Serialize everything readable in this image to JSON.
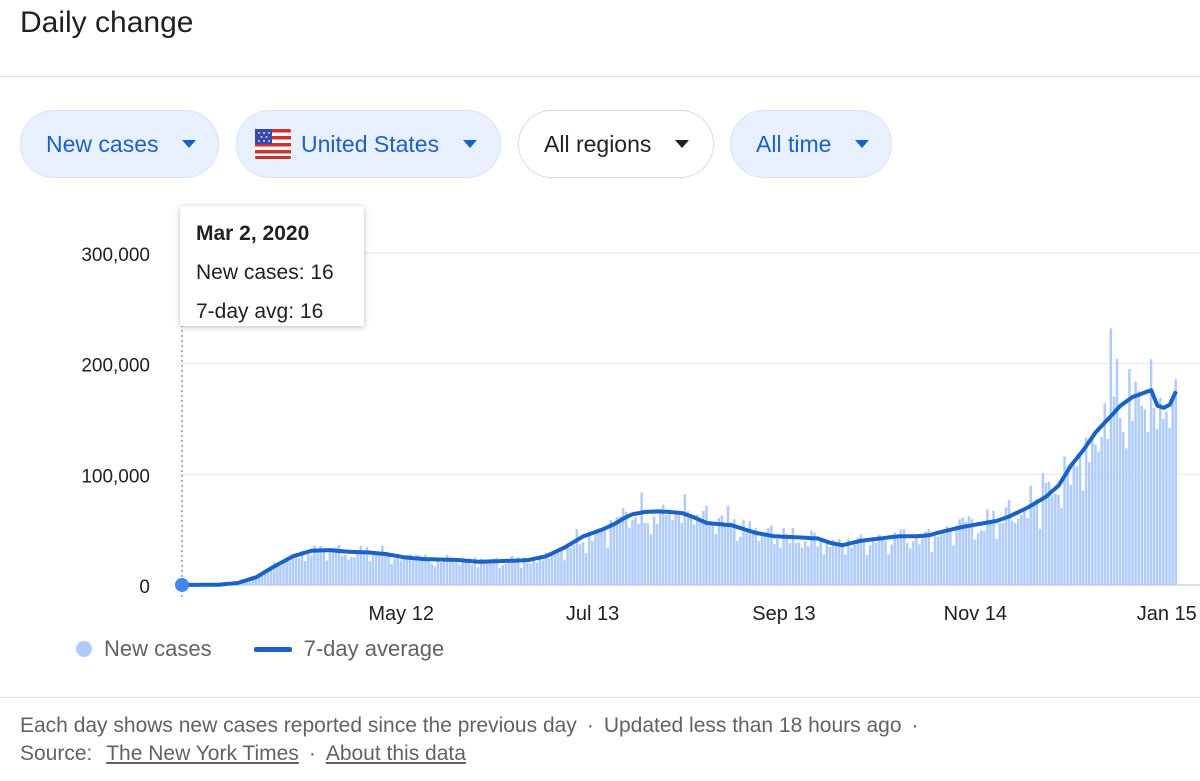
{
  "header": {
    "title": "Daily change"
  },
  "filters": [
    {
      "label": "New cases",
      "style": "blue",
      "name": "metric-filter-chip"
    },
    {
      "label": "United States",
      "style": "blue",
      "flag": true,
      "name": "country-filter-chip"
    },
    {
      "label": "All regions",
      "style": "white",
      "name": "region-filter-chip"
    },
    {
      "label": "All time",
      "style": "blue",
      "name": "time-filter-chip"
    }
  ],
  "tooltip": {
    "date": "Mar 2, 2020",
    "new_cases": "New cases: 16",
    "avg": "7-day avg: 16"
  },
  "legend": {
    "bars": "New cases",
    "line": "7-day average"
  },
  "footer": {
    "line1": "Each day shows new cases reported since the previous day",
    "updated": "Updated less than 18 hours ago",
    "source_label": "Source:",
    "source_link": "The New York Times",
    "about_link": "About this data"
  },
  "colors": {
    "accent": "#1a62c9",
    "bars": "#aecbfa",
    "chip_bg": "#e8f0fe"
  },
  "chart_data": {
    "type": "bar",
    "series": [
      {
        "name": "New cases",
        "type": "bar"
      },
      {
        "name": "7-day average",
        "type": "line"
      }
    ],
    "x_ticks": [
      "May 12",
      "Jul 13",
      "Sep 13",
      "Nov 14",
      "Jan 15"
    ],
    "y_ticks": [
      "0",
      "100,000",
      "200,000",
      "300,000"
    ],
    "ylim": [
      0,
      300000
    ],
    "x_range_days": [
      0,
      322
    ],
    "tick_days": [
      71,
      133,
      195,
      257,
      319
    ],
    "avg_points": [
      [
        0,
        16
      ],
      [
        12,
        300
      ],
      [
        18,
        1800
      ],
      [
        24,
        7000
      ],
      [
        30,
        17000
      ],
      [
        36,
        26000
      ],
      [
        42,
        31000
      ],
      [
        48,
        31500
      ],
      [
        54,
        30000
      ],
      [
        60,
        29500
      ],
      [
        66,
        28000
      ],
      [
        72,
        25000
      ],
      [
        78,
        23500
      ],
      [
        84,
        23000
      ],
      [
        90,
        22500
      ],
      [
        96,
        21000
      ],
      [
        102,
        21500
      ],
      [
        108,
        22000
      ],
      [
        112,
        22500
      ],
      [
        118,
        26000
      ],
      [
        124,
        34000
      ],
      [
        130,
        44000
      ],
      [
        136,
        50000
      ],
      [
        140,
        55000
      ],
      [
        143,
        60000
      ],
      [
        146,
        64000
      ],
      [
        150,
        66000
      ],
      [
        154,
        66500
      ],
      [
        158,
        66000
      ],
      [
        162,
        65000
      ],
      [
        166,
        61000
      ],
      [
        170,
        56000
      ],
      [
        178,
        54000
      ],
      [
        186,
        47000
      ],
      [
        192,
        44000
      ],
      [
        200,
        43000
      ],
      [
        206,
        42000
      ],
      [
        210,
        38000
      ],
      [
        214,
        36000
      ],
      [
        220,
        40000
      ],
      [
        226,
        42000
      ],
      [
        232,
        44000
      ],
      [
        238,
        44000
      ],
      [
        242,
        45000
      ],
      [
        246,
        48000
      ],
      [
        252,
        52000
      ],
      [
        258,
        55000
      ],
      [
        264,
        58000
      ],
      [
        268,
        62000
      ],
      [
        274,
        70000
      ],
      [
        280,
        80000
      ],
      [
        284,
        90000
      ],
      [
        288,
        108000
      ],
      [
        292,
        122000
      ],
      [
        296,
        138000
      ],
      [
        300,
        150000
      ],
      [
        304,
        162000
      ],
      [
        308,
        170000
      ],
      [
        312,
        174000
      ],
      [
        314,
        176000
      ],
      [
        316,
        162000
      ],
      [
        318,
        160000
      ],
      [
        320,
        163000
      ],
      [
        322,
        175000
      ]
    ],
    "bar_note": "daily bars drawn around the 7-day average"
  }
}
